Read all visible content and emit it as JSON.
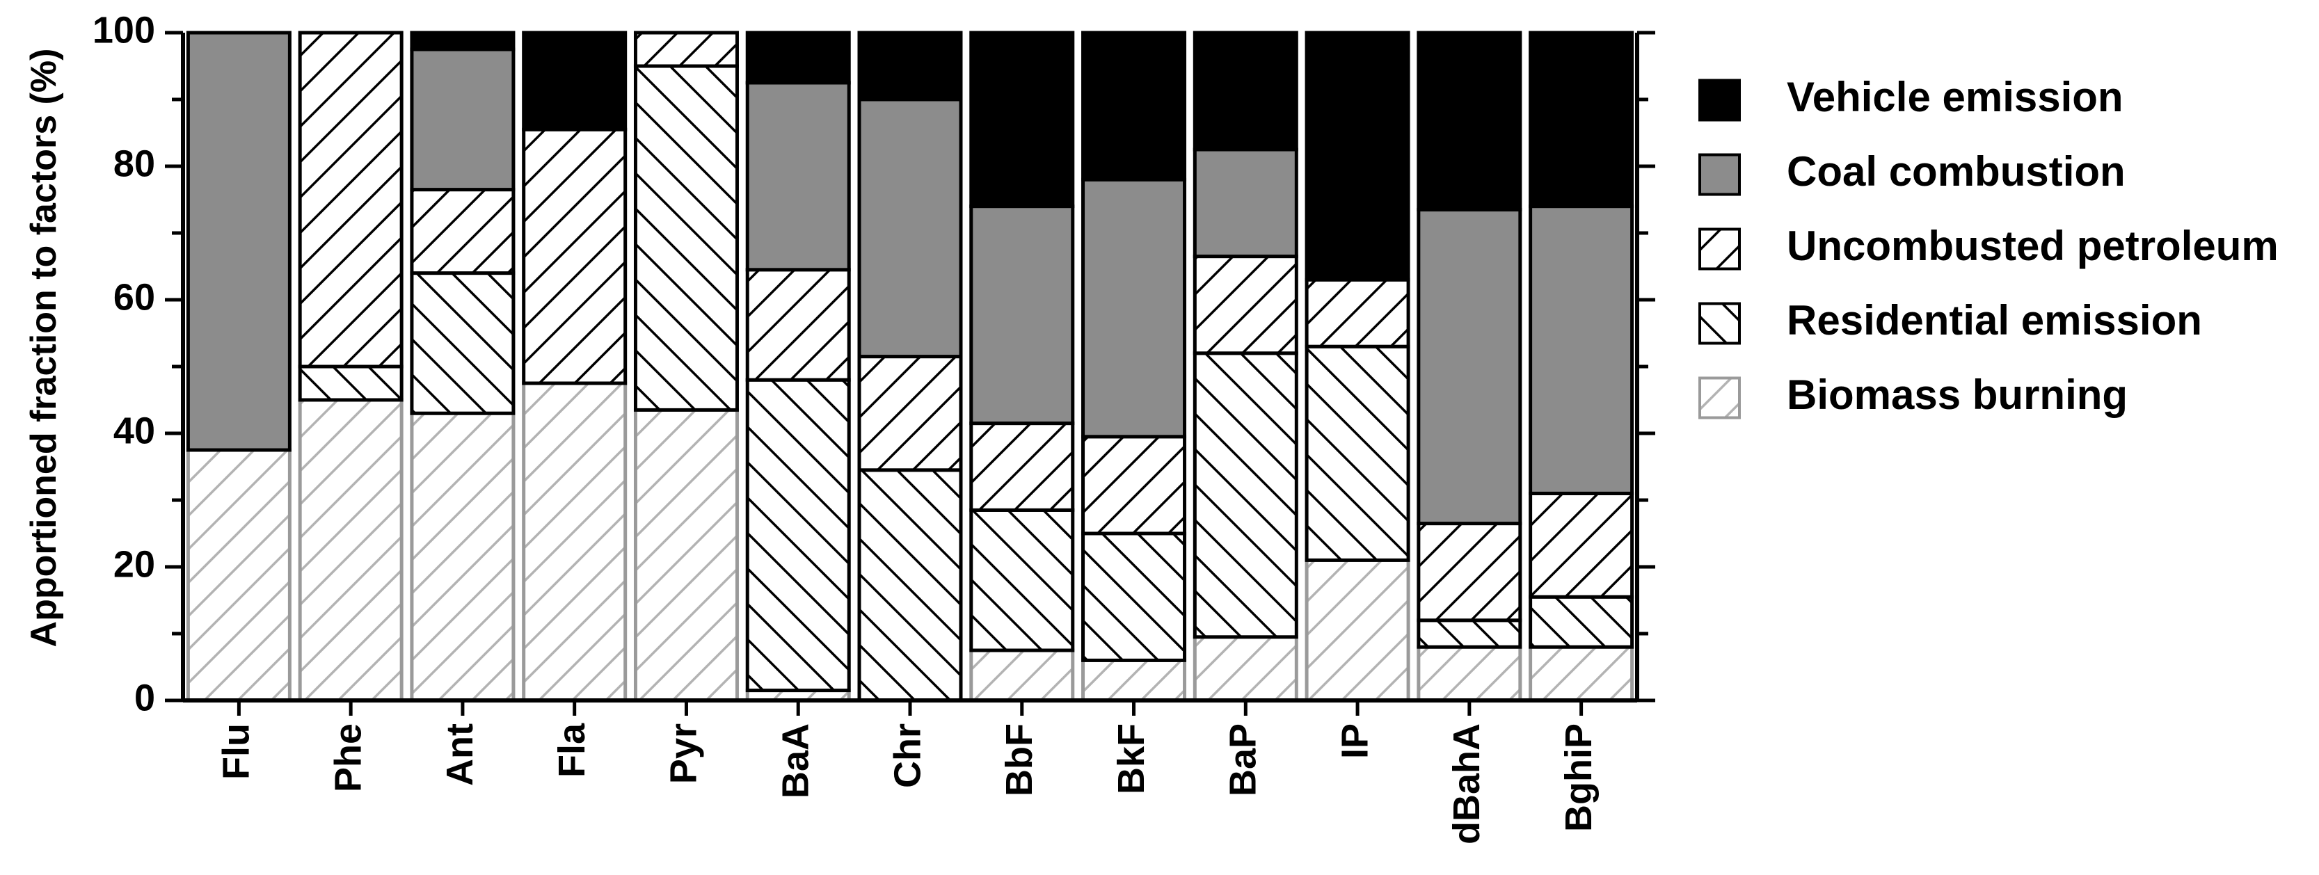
{
  "chart_data": {
    "type": "bar",
    "stacked": true,
    "orientation": "vertical",
    "title": "",
    "xlabel": "",
    "ylabel": "Apportioned fraction to factors (%)",
    "ylim": [
      0,
      100
    ],
    "yticks": [
      "0",
      "20",
      "40",
      "60",
      "80",
      "100"
    ],
    "grid": false,
    "legend_position": "right",
    "categories": [
      "Flu",
      "Phe",
      "Ant",
      "Fla",
      "Pyr",
      "BaA",
      "Chr",
      "BbF",
      "BkF",
      "BaP",
      "IP",
      "dBahA",
      "BghiP"
    ],
    "series": [
      {
        "name": "Biomass burning",
        "color": "#b0b0b0",
        "pattern": "light-forward-hatch",
        "values": [
          37.5,
          45,
          43,
          47.5,
          43.5,
          1.5,
          0,
          7.5,
          6,
          9.5,
          21,
          8,
          8
        ]
      },
      {
        "name": "Residential emission",
        "color": "#000000",
        "pattern": "back-hatch",
        "values": [
          0,
          5,
          21,
          0,
          51.5,
          46.5,
          34.5,
          21,
          19,
          42.5,
          32,
          4,
          7.5
        ]
      },
      {
        "name": "Uncombusted petroleum",
        "color": "#000000",
        "pattern": "forward-hatch",
        "values": [
          0,
          50,
          12.5,
          38,
          5,
          16.5,
          17,
          13,
          14.5,
          14.5,
          10,
          14.5,
          15.5
        ]
      },
      {
        "name": "Coal combustion",
        "color": "#8c8c8c",
        "pattern": "solid",
        "values": [
          62.5,
          0,
          21,
          0,
          0,
          28,
          38.5,
          32.5,
          38.5,
          16,
          0,
          47,
          43
        ]
      },
      {
        "name": "Vehicle emission",
        "color": "#000000",
        "pattern": "solid",
        "values": [
          0,
          0,
          2.5,
          14.5,
          0,
          7.5,
          10,
          26,
          22,
          17.5,
          37,
          26.5,
          26
        ]
      }
    ],
    "legend_order": [
      "Vehicle emission",
      "Coal combustion",
      "Uncombusted petroleum",
      "Residential emission",
      "Biomass burning"
    ]
  }
}
